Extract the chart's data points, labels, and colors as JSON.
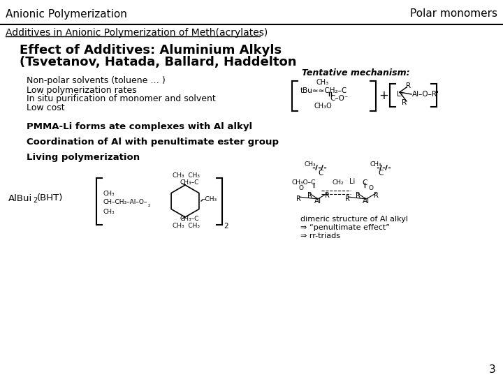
{
  "header_left": "Anionic Polymerization",
  "header_right": "Polar monomers",
  "subheader": "Additives in Anionic Polymerization of Meth(acrylates)",
  "title_line1": "Effect of Additives: Aluminium Alkyls",
  "title_line2": "(Tsvetanov, Hatada, Ballard, Haddelton",
  "bullet1": "Non-polar solvents (toluene … )",
  "bullet2": "Low polymerization rates",
  "bullet3": "In situ purification of monomer and solvent",
  "bullet4": "Low cost",
  "tentative_label": "Tentative mechanism:",
  "text_pmma": "PMMA-Li forms ate complexes with Al alkyl",
  "text_coord": "Coordination of Al with penultimate ester group",
  "text_living": "Living polymerization",
  "dimeric_label1": "dimeric structure of Al alkyl",
  "dimeric_label2": "⇒ “penultimate effect”",
  "dimeric_label3": "⇒ rr-triads",
  "page_number": "3",
  "bg_color": "#ffffff",
  "line_color": "#000000",
  "text_color": "#000000"
}
